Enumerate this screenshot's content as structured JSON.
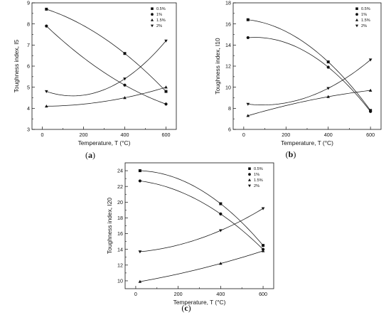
{
  "legend_labels": [
    "0.5%",
    "1%",
    "1.5%",
    "2%"
  ],
  "chart_data": [
    {
      "type": "scatter",
      "panel_label": "(a)",
      "xlabel": "Temperature, T (°C)",
      "ylabel": "Toughness index, I5",
      "xlim": [
        -50,
        650
      ],
      "ylim": [
        3,
        9
      ],
      "xticks": [
        0,
        200,
        400,
        600
      ],
      "yticks": [
        3,
        4,
        5,
        6,
        7,
        8,
        9
      ],
      "x": [
        20,
        400,
        600
      ],
      "series": [
        {
          "name": "0.5%",
          "marker": "square",
          "values": [
            8.7,
            6.6,
            4.8
          ]
        },
        {
          "name": "1%",
          "marker": "circle",
          "values": [
            7.9,
            5.1,
            4.2
          ]
        },
        {
          "name": "1.5%",
          "marker": "triangle-up",
          "values": [
            4.1,
            4.5,
            5.0
          ]
        },
        {
          "name": "2%",
          "marker": "triangle-down",
          "values": [
            4.8,
            5.4,
            7.2
          ]
        }
      ],
      "legend_position": "top-right",
      "grid": false
    },
    {
      "type": "scatter",
      "panel_label": "(b)",
      "xlabel": "Temperature, T (°C)",
      "ylabel": "Toughness index, I10",
      "xlim": [
        -50,
        650
      ],
      "ylim": [
        6,
        18
      ],
      "xticks": [
        0,
        200,
        400,
        600
      ],
      "yticks": [
        6,
        8,
        10,
        12,
        14,
        16,
        18
      ],
      "x": [
        20,
        400,
        600
      ],
      "series": [
        {
          "name": "0.5%",
          "marker": "square",
          "values": [
            16.4,
            12.4,
            7.8
          ]
        },
        {
          "name": "1%",
          "marker": "circle",
          "values": [
            14.7,
            11.9,
            7.7
          ]
        },
        {
          "name": "1.5%",
          "marker": "triangle-up",
          "values": [
            7.3,
            9.1,
            9.7
          ]
        },
        {
          "name": "2%",
          "marker": "triangle-down",
          "values": [
            8.4,
            9.9,
            12.6
          ]
        }
      ],
      "legend_position": "top-right",
      "grid": false
    },
    {
      "type": "scatter",
      "panel_label": "(c)",
      "xlabel": "Temperature, T (°C)",
      "ylabel": "Toughness index, I20",
      "xlim": [
        -50,
        650
      ],
      "ylim": [
        9,
        25
      ],
      "xticks": [
        0,
        200,
        400,
        600
      ],
      "yticks": [
        10,
        12,
        14,
        16,
        18,
        20,
        22,
        24
      ],
      "x": [
        20,
        400,
        600
      ],
      "series": [
        {
          "name": "0.5%",
          "marker": "square",
          "values": [
            24.0,
            19.8,
            14.5
          ]
        },
        {
          "name": "1%",
          "marker": "circle",
          "values": [
            22.7,
            18.5,
            14.0
          ]
        },
        {
          "name": "1.5%",
          "marker": "triangle-up",
          "values": [
            9.9,
            12.2,
            13.8
          ]
        },
        {
          "name": "2%",
          "marker": "triangle-down",
          "values": [
            13.7,
            16.4,
            19.2
          ]
        }
      ],
      "legend_position": "top-right",
      "grid": false
    }
  ]
}
